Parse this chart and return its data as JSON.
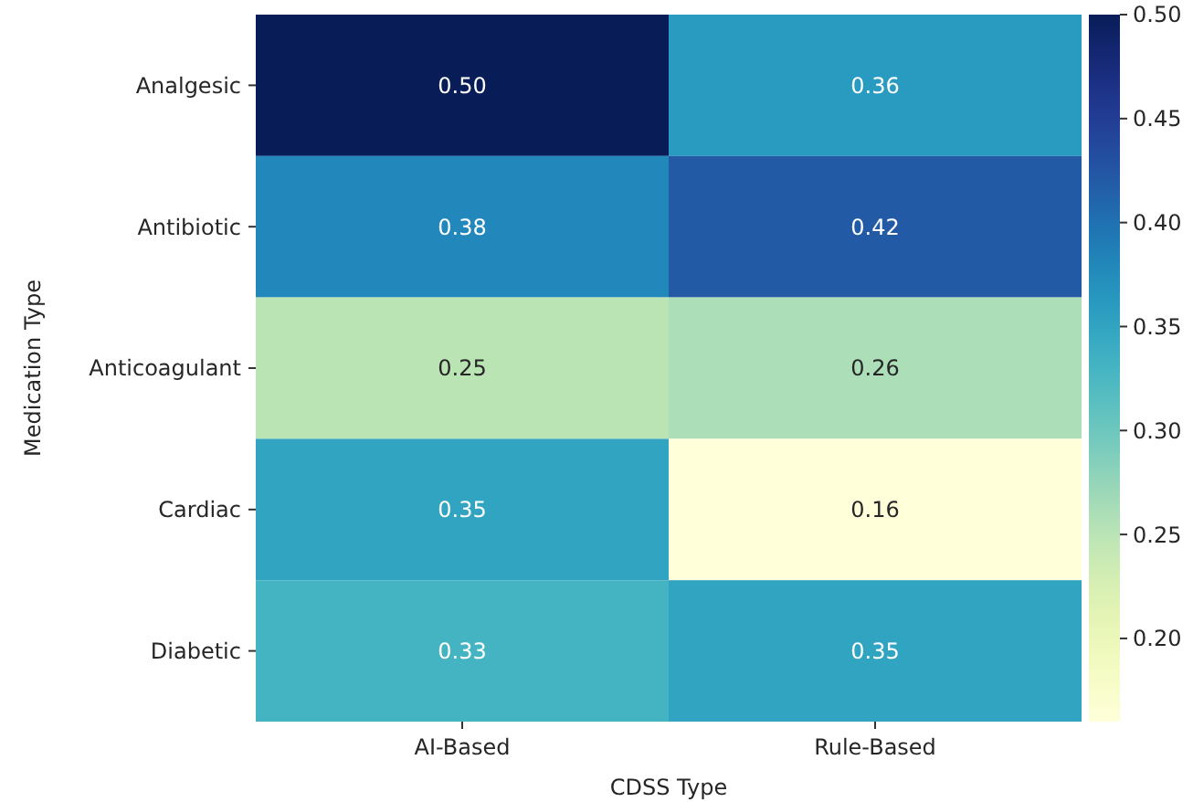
{
  "chart_data": {
    "type": "heatmap",
    "xlabel": "CDSS Type",
    "ylabel": "Medication Type",
    "categories": [
      "AI-Based",
      "Rule-Based"
    ],
    "y_categories": [
      "Analgesic",
      "Antibiotic",
      "Anticoagulant",
      "Cardiac",
      "Diabetic"
    ],
    "cells": [
      [
        0.5,
        0.36
      ],
      [
        0.38,
        0.42
      ],
      [
        0.25,
        0.26
      ],
      [
        0.35,
        0.16
      ],
      [
        0.33,
        0.35
      ]
    ],
    "cell_labels": [
      [
        "0.50",
        "0.36"
      ],
      [
        "0.38",
        "0.42"
      ],
      [
        "0.25",
        "0.26"
      ],
      [
        "0.35",
        "0.16"
      ],
      [
        "0.33",
        "0.35"
      ]
    ],
    "clim": [
      0.16,
      0.5
    ],
    "cticks": [
      {
        "value": 0.2,
        "label": "0.20"
      },
      {
        "value": 0.25,
        "label": "0.25"
      },
      {
        "value": 0.3,
        "label": "0.30"
      },
      {
        "value": 0.35,
        "label": "0.35"
      },
      {
        "value": 0.4,
        "label": "0.40"
      },
      {
        "value": 0.45,
        "label": "0.45"
      },
      {
        "value": 0.5,
        "label": "0.50"
      }
    ]
  }
}
